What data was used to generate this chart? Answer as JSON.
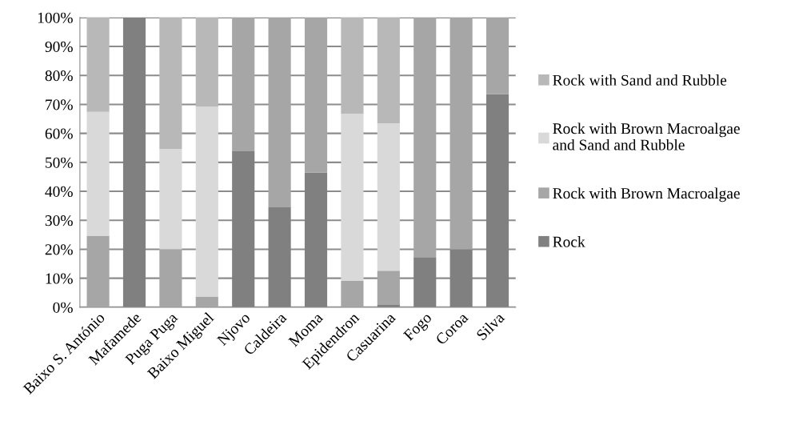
{
  "chart_data": {
    "type": "bar",
    "stacked": true,
    "categories": [
      "Baixo S. António",
      "Mafamede",
      "Puga Puga",
      "Baixo Miguel",
      "Njovo",
      "Caldeira",
      "Moma",
      "Epidendron",
      "Casuarina",
      "Fogo",
      "Coroa",
      "Silva"
    ],
    "series": [
      {
        "name": "Rock",
        "color": "#808080",
        "values": [
          0,
          100,
          0,
          0,
          53.8,
          34.5,
          46.5,
          0,
          0.8,
          17.3,
          20,
          73.6
        ]
      },
      {
        "name": "Rock with Brown Macroalgae",
        "color": "#a6a6a6",
        "values": [
          24.7,
          0,
          20,
          3.7,
          46.2,
          65.5,
          53.5,
          9.1,
          11.8,
          82.7,
          80,
          26.4
        ]
      },
      {
        "name": "Rock with Brown Macroalgae and Sand and Rubble",
        "color": "#d9d9d9",
        "values": [
          42.7,
          0,
          34.6,
          65.5,
          0,
          0,
          0,
          57.7,
          50.9,
          0,
          0,
          0
        ]
      },
      {
        "name": "Rock with Sand and Rubble",
        "color": "#b8b8b8",
        "values": [
          32.6,
          0,
          45.4,
          30.8,
          0,
          0,
          0,
          33.2,
          36.5,
          0,
          0,
          0
        ]
      }
    ],
    "ylim": [
      0,
      100
    ],
    "yticks": [
      {
        "value": 0,
        "label": "0%"
      },
      {
        "value": 10,
        "label": "10%"
      },
      {
        "value": 20,
        "label": "20%"
      },
      {
        "value": 30,
        "label": "30%"
      },
      {
        "value": 40,
        "label": "40%"
      },
      {
        "value": 50,
        "label": "50%"
      },
      {
        "value": 60,
        "label": "60%"
      },
      {
        "value": 70,
        "label": "70%"
      },
      {
        "value": 80,
        "label": "80%"
      },
      {
        "value": 90,
        "label": "90%"
      },
      {
        "value": 100,
        "label": "100%"
      }
    ],
    "grid": "y",
    "legend": "right"
  }
}
